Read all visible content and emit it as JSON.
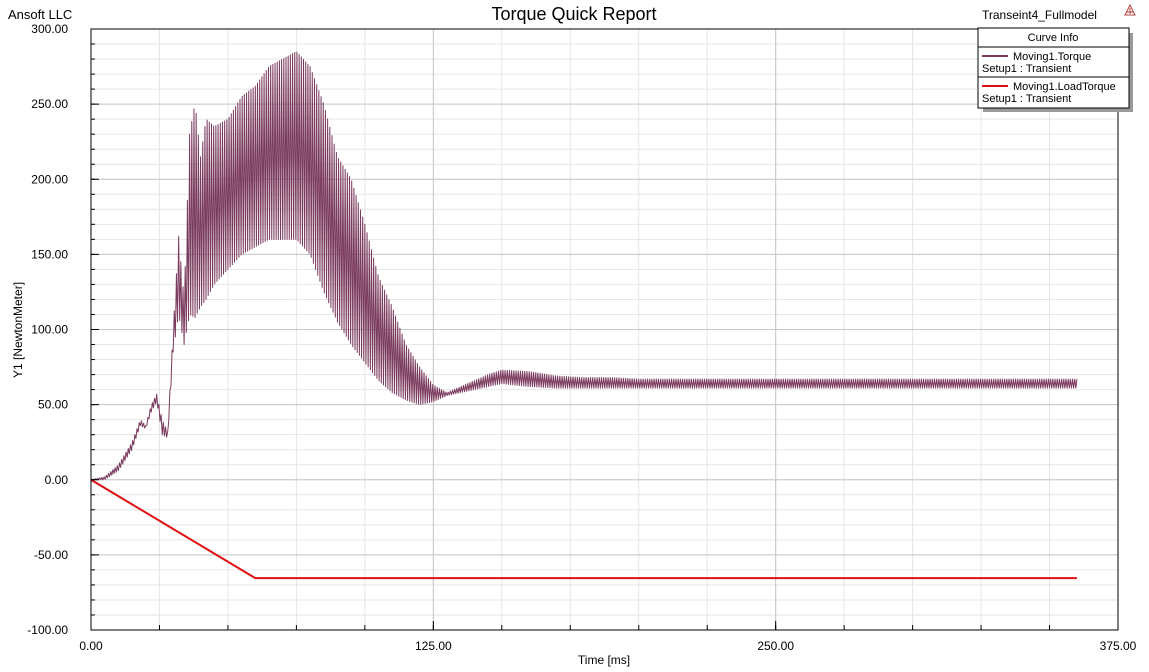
{
  "header": {
    "company": "Ansoft LLC",
    "design_name": "Transeint4_Fullmodel"
  },
  "icons": {
    "corner": "ansoft-logo-icon"
  },
  "colors": {
    "torque": "#7b3b5e",
    "load_torque": "#dd1111",
    "grid_major": "#c8c8c8",
    "grid_minor": "#e6e6e6",
    "background": "#ffffff"
  },
  "legend": {
    "title": "Curve Info",
    "entries": [
      {
        "name": "Moving1.Torque",
        "setup": "Setup1 : Transient"
      },
      {
        "name": "Moving1.LoadTorque",
        "setup": "Setup1 : Transient"
      }
    ]
  },
  "chart_data": {
    "type": "line",
    "title": "Torque Quick Report",
    "xlabel": "Time [ms]",
    "ylabel": "Y1 [NewtonMeter]",
    "xlim": [
      0,
      375
    ],
    "ylim": [
      -100,
      300
    ],
    "xticks": [
      0,
      125,
      250,
      375
    ],
    "xtick_labels": [
      "0.00",
      "125.00",
      "250.00",
      "375.00"
    ],
    "yticks": [
      -100,
      -50,
      0,
      50,
      100,
      150,
      200,
      250,
      300
    ],
    "ytick_labels": [
      "-100.00",
      "-50.00",
      "0.00",
      "50.00",
      "100.00",
      "150.00",
      "200.00",
      "250.00",
      "300.00"
    ],
    "grid": true,
    "legend_position": "top-right",
    "series": [
      {
        "name": "Moving1.Torque",
        "color": "#7b3b5e",
        "oscillating": true,
        "envelope": {
          "x": [
            0,
            5,
            10,
            15,
            18,
            20,
            22,
            24,
            26,
            28,
            30,
            32,
            34,
            36,
            38,
            40,
            42,
            45,
            50,
            55,
            60,
            65,
            70,
            75,
            80,
            85,
            90,
            95,
            100,
            105,
            110,
            115,
            120,
            125,
            130,
            135,
            140,
            145,
            150,
            160,
            170,
            180,
            190,
            200,
            250,
            300,
            360
          ],
          "upper": [
            0,
            2,
            10,
            25,
            40,
            36,
            50,
            57,
            40,
            32,
            100,
            162,
            120,
            230,
            251,
            215,
            240,
            235,
            240,
            255,
            262,
            275,
            280,
            285,
            275,
            250,
            215,
            200,
            170,
            135,
            115,
            90,
            75,
            63,
            58,
            62,
            66,
            70,
            73,
            72,
            69,
            68,
            68,
            67,
            67,
            67,
            67
          ],
          "lower": [
            0,
            0,
            6,
            20,
            36,
            34,
            45,
            52,
            30,
            28,
            85,
            110,
            90,
            110,
            108,
            115,
            120,
            130,
            140,
            150,
            155,
            160,
            160,
            160,
            150,
            125,
            105,
            90,
            78,
            66,
            58,
            53,
            50,
            52,
            56,
            58,
            60,
            62,
            64,
            62,
            61,
            61,
            61,
            61,
            61,
            61,
            61
          ]
        }
      },
      {
        "name": "Moving1.LoadTorque",
        "color": "#dd1111",
        "x": [
          0,
          60,
          360
        ],
        "y": [
          0,
          -65.5,
          -65.5
        ]
      }
    ]
  }
}
